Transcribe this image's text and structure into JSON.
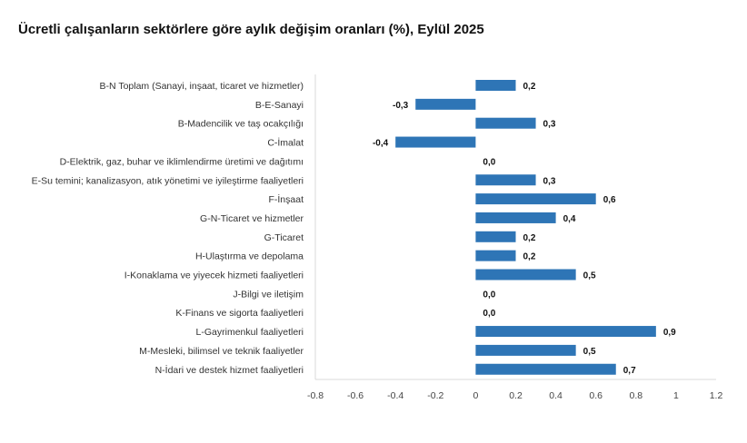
{
  "chart_data": {
    "type": "bar",
    "orientation": "horizontal",
    "title": "Ücretli çalışanların sektörlere göre aylık değişim oranları (%), Eylül 2025",
    "categories": [
      "B-N Toplam (Sanayi, inşaat, ticaret ve hizmetler)",
      "B-E-Sanayi",
      "B-Madencilik ve taş ocakçılığı",
      "C-İmalat",
      "D-Elektrik, gaz, buhar ve iklimlendirme üretimi ve dağıtımı",
      "E-Su temini; kanalizasyon, atık yönetimi ve iyileştirme faaliyetleri",
      "F-İnşaat",
      "G-N-Ticaret ve hizmetler",
      "G-Ticaret",
      "H-Ulaştırma ve depolama",
      "I-Konaklama ve yiyecek hizmeti faaliyetleri",
      "J-Bilgi ve iletişim",
      "K-Finans ve sigorta faaliyetleri",
      "L-Gayrimenkul faaliyetleri",
      "M-Mesleki, bilimsel ve teknik faaliyetler",
      "N-İdari ve destek hizmet faaliyetleri"
    ],
    "values": [
      0.2,
      -0.3,
      0.3,
      -0.4,
      0.0,
      0.3,
      0.6,
      0.4,
      0.2,
      0.2,
      0.5,
      0.0,
      0.0,
      0.9,
      0.5,
      0.7
    ],
    "data_labels": [
      "0,2",
      "-0,3",
      "0,3",
      "-0,4",
      "0,0",
      "0,3",
      "0,6",
      "0,4",
      "0,2",
      "0,2",
      "0,5",
      "0,0",
      "0,0",
      "0,9",
      "0,5",
      "0,7"
    ],
    "xlim": [
      -0.8,
      1.2
    ],
    "xticks": [
      "-0.8",
      "-0.6",
      "-0.4",
      "-0.2",
      "0",
      "0.2",
      "0.4",
      "0.6",
      "0.8",
      "1",
      "1.2"
    ],
    "grid": false,
    "legend": "none",
    "color": "#2e75b6"
  }
}
